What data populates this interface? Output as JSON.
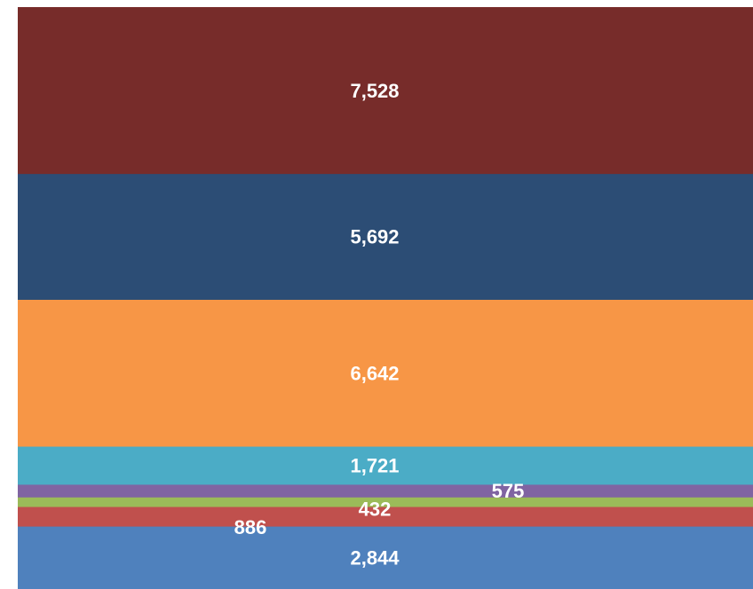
{
  "chart_data": {
    "type": "bar",
    "stacked": true,
    "categories": [
      ""
    ],
    "series": [
      {
        "value": 2844,
        "label": "2,844",
        "color": "#4F81BD"
      },
      {
        "value": 886,
        "label": "886",
        "color": "#C0504D"
      },
      {
        "value": 432,
        "label": "432",
        "color": "#9BBB59"
      },
      {
        "value": 575,
        "label": "575",
        "color": "#8064A2"
      },
      {
        "value": 1721,
        "label": "1,721",
        "color": "#4BACC6"
      },
      {
        "value": 6642,
        "label": "6,642",
        "color": "#F79646"
      },
      {
        "value": 5692,
        "label": "5,692",
        "color": "#2C4D75"
      },
      {
        "value": 7528,
        "label": "7,528",
        "color": "#772C2A"
      }
    ],
    "title": "",
    "xlabel": "",
    "ylabel": "",
    "legend": "none",
    "grid": false
  }
}
